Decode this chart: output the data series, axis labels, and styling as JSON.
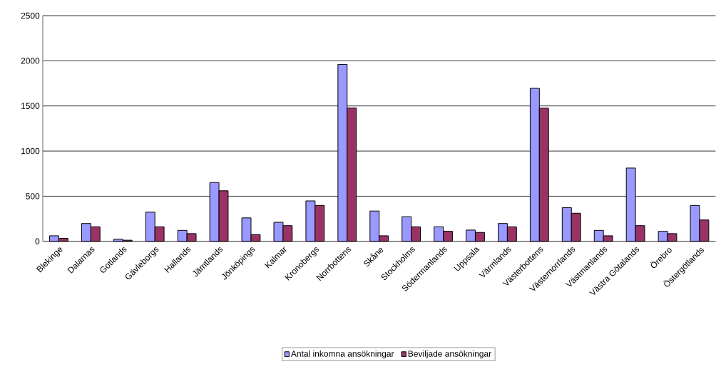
{
  "chart_data": {
    "type": "bar",
    "categories": [
      "Blekinge",
      "Dalarnas",
      "Gotlands",
      "Gävleborgs",
      "Hallands",
      "Jämtlands",
      "Jönköpings",
      "Kalmar",
      "Kronobergs",
      "Norrbottens",
      "Skåne",
      "Stockholms",
      "Södermanlands",
      "Uppsala",
      "Värmlands",
      "Västerbottens",
      "Västernorrlands",
      "Västmanlands",
      "Västra Götalands",
      "Örebro",
      "Östergötlands"
    ],
    "series": [
      {
        "name": "Antal inkomna ansökningar",
        "color": "#9999ff",
        "values": [
          62,
          198,
          23,
          323,
          122,
          651,
          260,
          211,
          448,
          1960,
          336,
          273,
          161,
          125,
          198,
          1695,
          374,
          122,
          812,
          112,
          398
        ]
      },
      {
        "name": "Beviljade ansökningar",
        "color": "#993366",
        "values": [
          34,
          161,
          13,
          161,
          86,
          560,
          75,
          174,
          398,
          1477,
          62,
          161,
          112,
          99,
          161,
          1475,
          312,
          62,
          174,
          86,
          237
        ]
      }
    ],
    "ylim": [
      0,
      2500
    ],
    "yticks": [
      0,
      500,
      1000,
      1500,
      2000,
      2500
    ],
    "grid": "y",
    "legend": "bottom"
  }
}
